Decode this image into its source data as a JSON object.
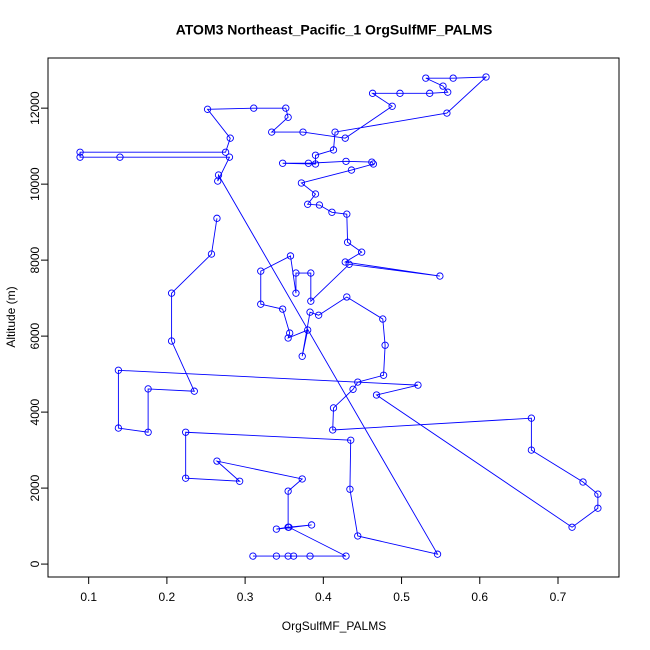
{
  "chart_data": {
    "type": "line",
    "title": "ATOM3 Northeast_Pacific_1 OrgSulfMF_PALMS",
    "x_label": "OrgSulfMF_PALMS",
    "y_label": "Altitude (m)",
    "color": "#0000ff",
    "marker": "circle",
    "x": [
      0.31,
      0.34,
      0.355,
      0.362,
      0.383,
      0.429,
      0.356,
      0.385,
      0.34,
      0.355,
      0.355,
      0.373,
      0.264,
      0.293,
      0.224,
      0.224,
      0.435,
      0.434,
      0.444,
      0.546,
      0.266,
      0.265,
      0.28,
      0.14,
      0.089,
      0.089,
      0.275,
      0.281,
      0.252,
      0.311,
      0.352,
      0.355,
      0.334,
      0.374,
      0.428,
      0.488,
      0.463,
      0.498,
      0.536,
      0.559,
      0.553,
      0.531,
      0.566,
      0.608,
      0.558,
      0.415,
      0.413,
      0.39,
      0.39,
      0.348,
      0.381,
      0.429,
      0.462,
      0.464,
      0.436,
      0.372,
      0.39,
      0.38,
      0.395,
      0.411,
      0.43,
      0.431,
      0.449,
      0.428,
      0.549,
      0.433,
      0.384,
      0.384,
      0.365,
      0.365,
      0.358,
      0.32,
      0.32,
      0.348,
      0.357,
      0.355,
      0.38,
      0.373,
      0.383,
      0.394,
      0.43,
      0.476,
      0.479,
      0.477,
      0.444,
      0.438,
      0.413,
      0.412,
      0.666,
      0.666,
      0.732,
      0.751,
      0.751,
      0.718,
      0.468,
      0.521,
      0.138,
      0.138,
      0.176,
      0.176,
      0.235,
      0.206,
      0.206,
      0.257,
      0.264
    ],
    "values": [
      210,
      210,
      210,
      210,
      210,
      210,
      970,
      1030,
      920,
      970,
      1920,
      2240,
      2710,
      2180,
      2260,
      3470,
      3260,
      1970,
      740,
      260,
      10240,
      10080,
      10710,
      10710,
      10710,
      10840,
      10840,
      11210,
      11970,
      12000,
      12000,
      11760,
      11370,
      11370,
      11210,
      12050,
      12390,
      12390,
      12390,
      12420,
      12580,
      12790,
      12790,
      12820,
      11870,
      11370,
      10900,
      10760,
      10530,
      10550,
      10550,
      10600,
      10580,
      10530,
      10370,
      10030,
      9740,
      9470,
      9450,
      9260,
      9210,
      8470,
      8210,
      7950,
      7580,
      7890,
      6920,
      7660,
      7660,
      7130,
      8110,
      7710,
      6840,
      6710,
      6080,
      5950,
      6160,
      5470,
      6630,
      6550,
      7030,
      6450,
      5760,
      4970,
      4790,
      4600,
      4110,
      3530,
      3840,
      3000,
      2160,
      1840,
      1470,
      970,
      4450,
      4710,
      5100,
      3580,
      3470,
      4610,
      4550,
      5870,
      7130,
      8160,
      9100
    ],
    "xlim": [
      0.048,
      0.778
    ],
    "ylim": [
      -340,
      13320
    ],
    "xticks": [
      0.1,
      0.2,
      0.3,
      0.4,
      0.5,
      0.6,
      0.7
    ],
    "yticks": [
      0,
      2000,
      4000,
      6000,
      8000,
      10000,
      12000
    ]
  }
}
